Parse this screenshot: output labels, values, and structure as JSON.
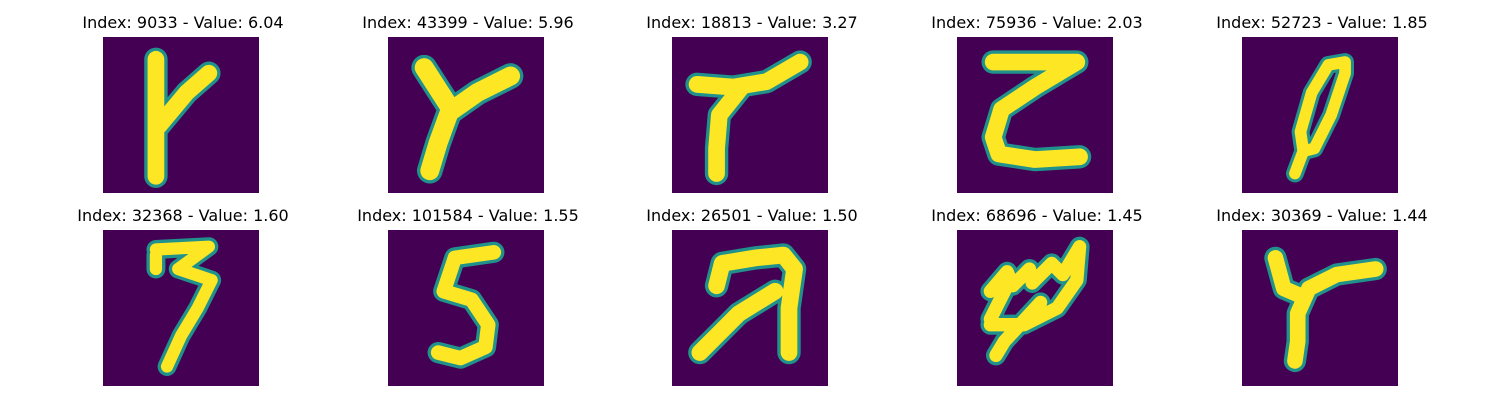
{
  "figure": {
    "background_color": "#440154",
    "foreground_color": "#fde725",
    "colormap": "viridis",
    "panels": [
      {
        "title": "Index: 9033 - Value: 6.04",
        "index": 9033,
        "value": 6.04,
        "depicts": "handwritten Y"
      },
      {
        "title": "Index: 43399 - Value: 5.96",
        "index": 43399,
        "value": 5.96,
        "depicts": "handwritten Y"
      },
      {
        "title": "Index: 18813 - Value: 3.27",
        "index": 18813,
        "value": 3.27,
        "depicts": "handwritten Y"
      },
      {
        "title": "Index: 75936 - Value: 2.03",
        "index": 75936,
        "value": 2.03,
        "depicts": "handwritten Z"
      },
      {
        "title": "Index: 52723 - Value: 1.85",
        "index": 52723,
        "value": 1.85,
        "depicts": "handwritten 0"
      },
      {
        "title": "Index: 32368 - Value: 1.60",
        "index": 32368,
        "value": 1.6,
        "depicts": "handwritten 3"
      },
      {
        "title": "Index: 101584 - Value: 1.55",
        "index": 101584,
        "value": 1.55,
        "depicts": "handwritten 5"
      },
      {
        "title": "Index: 26501 - Value: 1.50",
        "index": 26501,
        "value": 1.5,
        "depicts": "handwritten 2"
      },
      {
        "title": "Index: 68696 - Value: 1.45",
        "index": 68696,
        "value": 1.45,
        "depicts": "handwritten scribble"
      },
      {
        "title": "Index: 30369 - Value: 1.44",
        "index": 30369,
        "value": 1.44,
        "depicts": "handwritten Y"
      }
    ]
  }
}
